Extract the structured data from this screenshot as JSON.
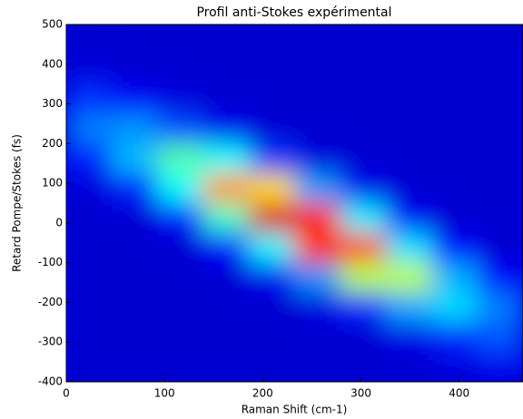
{
  "chart_data": {
    "type": "heatmap",
    "title": "Profil anti-Stokes expérimental",
    "xlabel": "Raman Shift (cm-1)",
    "ylabel": "Retard Pompe/Stokes (fs)",
    "colormap": "jet",
    "clim": [
      0,
      1
    ],
    "xbins": [
      0,
      46.5,
      93,
      139.5,
      186,
      232.5,
      279,
      325.5,
      372,
      418.5,
      465
    ],
    "ybins": [
      500,
      425,
      350,
      275,
      200,
      125,
      50,
      -25,
      -100,
      -175,
      -250,
      -325,
      -400
    ],
    "z": [
      [
        0.08,
        0.08,
        0.08,
        0.08,
        0.08,
        0.08,
        0.08,
        0.08,
        0.08,
        0.08
      ],
      [
        0.09,
        0.08,
        0.08,
        0.08,
        0.08,
        0.08,
        0.08,
        0.08,
        0.08,
        0.08
      ],
      [
        0.17,
        0.12,
        0.09,
        0.08,
        0.08,
        0.08,
        0.08,
        0.08,
        0.08,
        0.08
      ],
      [
        0.25,
        0.27,
        0.2,
        0.11,
        0.08,
        0.08,
        0.08,
        0.08,
        0.08,
        0.08
      ],
      [
        0.15,
        0.31,
        0.46,
        0.38,
        0.18,
        0.09,
        0.08,
        0.08,
        0.08,
        0.08
      ],
      [
        0.09,
        0.15,
        0.38,
        0.73,
        0.66,
        0.28,
        0.11,
        0.08,
        0.08,
        0.08
      ],
      [
        0.08,
        0.08,
        0.14,
        0.43,
        0.91,
        0.85,
        0.36,
        0.12,
        0.08,
        0.08
      ],
      [
        0.08,
        0.08,
        0.08,
        0.13,
        0.37,
        0.83,
        0.8,
        0.35,
        0.13,
        0.08
      ],
      [
        0.08,
        0.08,
        0.08,
        0.08,
        0.11,
        0.27,
        0.55,
        0.56,
        0.3,
        0.13
      ],
      [
        0.08,
        0.08,
        0.08,
        0.08,
        0.08,
        0.09,
        0.16,
        0.29,
        0.34,
        0.25
      ],
      [
        0.08,
        0.08,
        0.08,
        0.08,
        0.08,
        0.08,
        0.08,
        0.1,
        0.16,
        0.21
      ],
      [
        0.08,
        0.08,
        0.08,
        0.08,
        0.08,
        0.08,
        0.08,
        0.08,
        0.09,
        0.11
      ]
    ],
    "xlim": [
      0,
      465
    ],
    "ylim": [
      -400,
      500
    ],
    "xticks": [
      0,
      100,
      200,
      300,
      400
    ],
    "yticks": [
      -400,
      -300,
      -200,
      -100,
      0,
      100,
      200,
      300,
      400,
      500
    ]
  }
}
